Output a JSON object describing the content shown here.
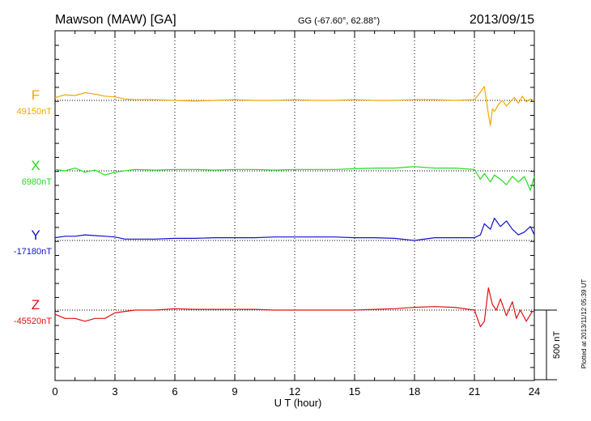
{
  "header": {
    "station": "Mawson (MAW)  [GA]",
    "coords": "GG (-67.60°,  62.88°)",
    "date": "2013/09/15"
  },
  "footer_note": "Plotted at 2013/11/12 05:39 UT",
  "chart_data": {
    "type": "line",
    "xlabel": "U T (hour)",
    "xlim": [
      0,
      24
    ],
    "xticks": [
      "0",
      "3",
      "6",
      "9",
      "12",
      "15",
      "18",
      "21",
      "24"
    ],
    "scale_bar_label": "500 nT",
    "scale_bar_value_nT": 500,
    "series": [
      {
        "name": "F",
        "baseline_label": "49150nT",
        "baseline_nT": 49150,
        "color": "#f0a800",
        "x": [
          0,
          0.5,
          1,
          1.5,
          2,
          2.5,
          3,
          3.5,
          4,
          5,
          6,
          7,
          8,
          9,
          10,
          11,
          12,
          13,
          14,
          15,
          16,
          17,
          18,
          19,
          20,
          21,
          21.3,
          21.5,
          21.7,
          21.8,
          21.9,
          22.0,
          22.2,
          22.4,
          22.6,
          22.8,
          23.0,
          23.2,
          23.4,
          23.6,
          23.8,
          24
        ],
        "y": [
          20,
          40,
          35,
          55,
          45,
          30,
          25,
          10,
          5,
          5,
          0,
          -5,
          0,
          5,
          0,
          0,
          5,
          0,
          0,
          5,
          0,
          0,
          5,
          5,
          0,
          5,
          60,
          100,
          -100,
          -180,
          -60,
          -80,
          -30,
          0,
          -40,
          -10,
          20,
          -20,
          30,
          -10,
          10,
          0
        ]
      },
      {
        "name": "X",
        "baseline_label": "6980nT",
        "baseline_nT": 6980,
        "color": "#22dd22",
        "x": [
          0,
          0.5,
          1,
          1.5,
          2,
          2.5,
          3,
          4,
          5,
          6,
          7,
          8,
          9,
          10,
          11,
          12,
          13,
          14,
          15,
          16,
          17,
          18,
          19,
          20,
          21,
          21.3,
          21.5,
          21.8,
          22.0,
          22.3,
          22.6,
          22.9,
          23.2,
          23.5,
          23.8,
          24
        ],
        "y": [
          10,
          0,
          20,
          -10,
          5,
          -30,
          -10,
          10,
          5,
          10,
          10,
          5,
          10,
          10,
          5,
          10,
          10,
          10,
          15,
          20,
          20,
          30,
          20,
          20,
          10,
          -60,
          -20,
          -80,
          -30,
          -60,
          -100,
          -40,
          -80,
          -40,
          -140,
          -40
        ]
      },
      {
        "name": "Y",
        "baseline_label": "-17180nT",
        "baseline_nT": -17180,
        "color": "#1010cc",
        "x": [
          0,
          0.5,
          1,
          1.5,
          2,
          2.5,
          3,
          3.5,
          4,
          5,
          6,
          7,
          8,
          9,
          10,
          11,
          12,
          13,
          14,
          15,
          16,
          17,
          18,
          19,
          20,
          21,
          21.3,
          21.5,
          21.8,
          22.0,
          22.3,
          22.6,
          22.9,
          23.2,
          23.5,
          23.8,
          24
        ],
        "y": [
          20,
          30,
          30,
          40,
          35,
          30,
          25,
          10,
          10,
          10,
          15,
          15,
          20,
          20,
          20,
          25,
          25,
          25,
          25,
          20,
          20,
          15,
          0,
          20,
          20,
          20,
          40,
          120,
          80,
          160,
          100,
          140,
          80,
          40,
          60,
          100,
          40
        ]
      },
      {
        "name": "Z",
        "baseline_label": "-45520nT",
        "baseline_nT": -45520,
        "color": "#e01010",
        "x": [
          0,
          0.5,
          1,
          1.5,
          2,
          2.5,
          3,
          4,
          5,
          6,
          7,
          8,
          9,
          10,
          11,
          12,
          13,
          14,
          15,
          16,
          17,
          18,
          19,
          20,
          21,
          21.3,
          21.5,
          21.7,
          21.9,
          22.1,
          22.3,
          22.6,
          22.9,
          23.1,
          23.3,
          23.6,
          23.9,
          24
        ],
        "y": [
          -30,
          -60,
          -60,
          -80,
          -60,
          -60,
          -20,
          0,
          0,
          10,
          5,
          5,
          5,
          5,
          0,
          0,
          0,
          0,
          0,
          5,
          10,
          20,
          25,
          20,
          0,
          -120,
          -80,
          160,
          40,
          0,
          80,
          -40,
          60,
          -60,
          0,
          -80,
          -10,
          -10
        ]
      }
    ]
  }
}
